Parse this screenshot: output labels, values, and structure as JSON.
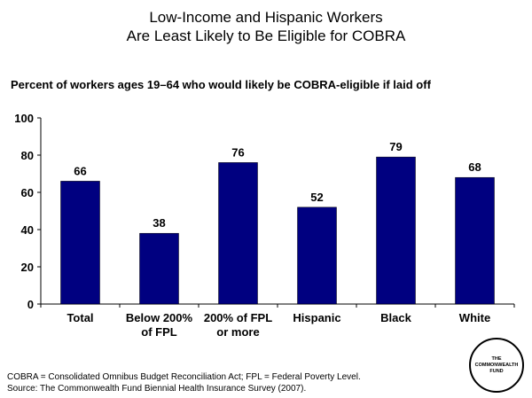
{
  "title_line1": "Low-Income and Hispanic Workers",
  "title_line2": "Are Least Likely to Be Eligible for COBRA",
  "subtitle": "Percent of workers ages 19–64 who would likely be COBRA-eligible if laid off",
  "footnote_line1": "COBRA = Consolidated Omnibus Budget Reconciliation Act; FPL = Federal Poverty Level.",
  "footnote_line2": "Source: The Commonwealth Fund Biennial Health Insurance Survey (2007).",
  "logo": {
    "line1": "THE",
    "line2": "COMMONWEALTH",
    "line3": "FUND"
  },
  "colors": {
    "bar": "#000080",
    "axis": "#000000"
  },
  "chart_data": {
    "type": "bar",
    "categories": [
      [
        "Total"
      ],
      [
        "Below 200%",
        "of FPL"
      ],
      [
        "200% of FPL",
        "or more"
      ],
      [
        "Hispanic"
      ],
      [
        "Black"
      ],
      [
        "White"
      ]
    ],
    "values": [
      66,
      38,
      76,
      52,
      79,
      68
    ],
    "ylim": [
      0,
      100
    ],
    "yticks": [
      0,
      20,
      40,
      60,
      80,
      100
    ],
    "data_labels": true,
    "grid": false,
    "legend": "none"
  }
}
